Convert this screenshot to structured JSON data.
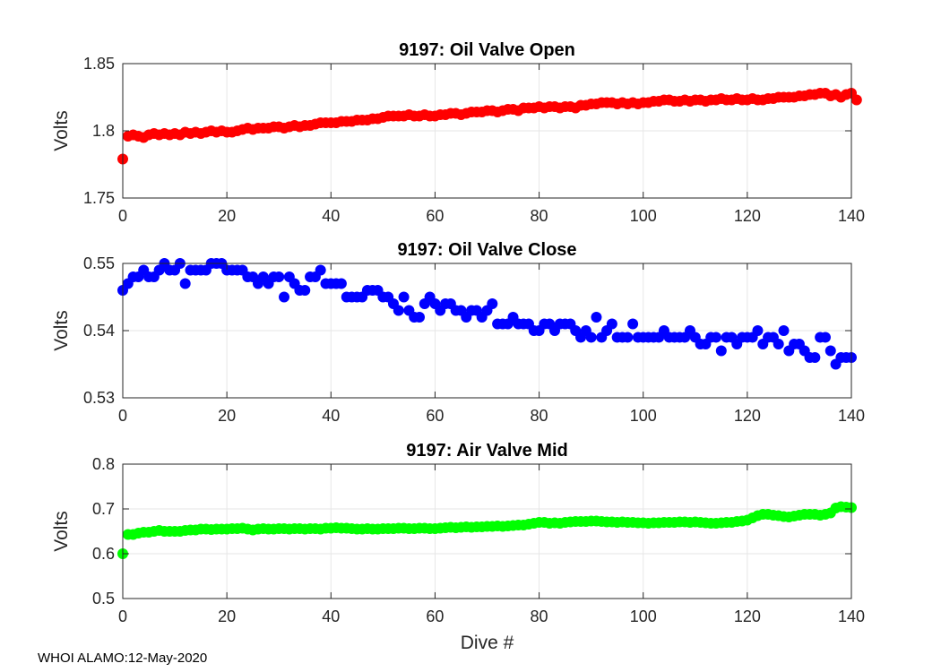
{
  "footer": "WHOI ALAMO:12-May-2020",
  "colors": {
    "panel1": "#ff0000",
    "panel2": "#0000ff",
    "panel3": "#00ff00"
  },
  "chart_data": [
    {
      "type": "scatter",
      "title": "9197: Oil Valve Open",
      "xlabel": "",
      "ylabel": "Volts",
      "xlim": [
        0,
        140
      ],
      "ylim": [
        1.75,
        1.85
      ],
      "xticks": [
        "0",
        "20",
        "40",
        "60",
        "80",
        "100",
        "120",
        "140"
      ],
      "yticks": [
        "1.75",
        "1.8",
        "1.85"
      ],
      "grid": true,
      "y": [
        1.779,
        1.796,
        1.797,
        1.796,
        1.795,
        1.797,
        1.798,
        1.797,
        1.798,
        1.797,
        1.798,
        1.797,
        1.799,
        1.798,
        1.799,
        1.798,
        1.799,
        1.8,
        1.799,
        1.8,
        1.799,
        1.799,
        1.8,
        1.801,
        1.802,
        1.801,
        1.802,
        1.802,
        1.802,
        1.803,
        1.803,
        1.802,
        1.803,
        1.804,
        1.803,
        1.804,
        1.804,
        1.805,
        1.806,
        1.806,
        1.806,
        1.806,
        1.807,
        1.807,
        1.807,
        1.808,
        1.808,
        1.808,
        1.809,
        1.809,
        1.81,
        1.811,
        1.811,
        1.811,
        1.811,
        1.812,
        1.811,
        1.811,
        1.812,
        1.811,
        1.811,
        1.812,
        1.812,
        1.813,
        1.813,
        1.812,
        1.813,
        1.814,
        1.814,
        1.814,
        1.815,
        1.815,
        1.814,
        1.815,
        1.816,
        1.816,
        1.815,
        1.817,
        1.817,
        1.817,
        1.818,
        1.817,
        1.818,
        1.818,
        1.817,
        1.818,
        1.818,
        1.817,
        1.819,
        1.819,
        1.82,
        1.82,
        1.821,
        1.821,
        1.821,
        1.82,
        1.821,
        1.82,
        1.821,
        1.82,
        1.821,
        1.821,
        1.822,
        1.822,
        1.823,
        1.823,
        1.822,
        1.822,
        1.823,
        1.822,
        1.823,
        1.823,
        1.822,
        1.823,
        1.823,
        1.824,
        1.823,
        1.823,
        1.824,
        1.823,
        1.823,
        1.824,
        1.823,
        1.823,
        1.824,
        1.824,
        1.825,
        1.825,
        1.825,
        1.825,
        1.826,
        1.826,
        1.827,
        1.827,
        1.828,
        1.828,
        1.826,
        1.827,
        1.825,
        1.827,
        1.828,
        1.823
      ]
    },
    {
      "type": "scatter",
      "title": "9197: Oil Valve Close",
      "xlabel": "",
      "ylabel": "Volts",
      "xlim": [
        0,
        140
      ],
      "ylim": [
        0.53,
        0.55
      ],
      "xticks": [
        "0",
        "20",
        "40",
        "60",
        "80",
        "100",
        "120",
        "140"
      ],
      "yticks": [
        "0.53",
        "0.54",
        "0.55"
      ],
      "grid": true,
      "y": [
        0.546,
        0.547,
        0.548,
        0.548,
        0.549,
        0.548,
        0.548,
        0.549,
        0.55,
        0.549,
        0.549,
        0.55,
        0.547,
        0.549,
        0.549,
        0.549,
        0.549,
        0.55,
        0.55,
        0.55,
        0.549,
        0.549,
        0.549,
        0.549,
        0.548,
        0.548,
        0.547,
        0.548,
        0.547,
        0.548,
        0.548,
        0.545,
        0.548,
        0.547,
        0.546,
        0.546,
        0.548,
        0.548,
        0.549,
        0.547,
        0.547,
        0.547,
        0.547,
        0.545,
        0.545,
        0.545,
        0.545,
        0.546,
        0.546,
        0.546,
        0.545,
        0.545,
        0.544,
        0.543,
        0.545,
        0.543,
        0.542,
        0.542,
        0.544,
        0.545,
        0.544,
        0.543,
        0.544,
        0.544,
        0.543,
        0.543,
        0.542,
        0.543,
        0.543,
        0.542,
        0.543,
        0.544,
        0.541,
        0.541,
        0.541,
        0.542,
        0.541,
        0.541,
        0.541,
        0.54,
        0.54,
        0.541,
        0.541,
        0.54,
        0.541,
        0.541,
        0.541,
        0.54,
        0.539,
        0.54,
        0.539,
        0.542,
        0.539,
        0.54,
        0.541,
        0.539,
        0.539,
        0.539,
        0.541,
        0.539,
        0.539,
        0.539,
        0.539,
        0.539,
        0.54,
        0.539,
        0.539,
        0.539,
        0.539,
        0.54,
        0.539,
        0.538,
        0.538,
        0.539,
        0.539,
        0.537,
        0.539,
        0.539,
        0.538,
        0.539,
        0.539,
        0.539,
        0.54,
        0.538,
        0.539,
        0.539,
        0.538,
        0.54,
        0.537,
        0.538,
        0.538,
        0.537,
        0.536,
        0.536,
        0.539,
        0.539,
        0.537,
        0.535,
        0.536,
        0.536,
        0.536
      ]
    },
    {
      "type": "scatter",
      "title": "9197: Air Valve Mid",
      "xlabel": "Dive #",
      "ylabel": "Volts",
      "xlim": [
        0,
        140
      ],
      "ylim": [
        0.5,
        0.8
      ],
      "xticks": [
        "0",
        "20",
        "40",
        "60",
        "80",
        "100",
        "120",
        "140"
      ],
      "yticks": [
        "0.5",
        "0.6",
        "0.7",
        "0.8"
      ],
      "grid": true,
      "y": [
        0.6,
        0.643,
        0.643,
        0.646,
        0.648,
        0.648,
        0.65,
        0.652,
        0.65,
        0.65,
        0.65,
        0.65,
        0.652,
        0.653,
        0.653,
        0.655,
        0.655,
        0.654,
        0.655,
        0.655,
        0.655,
        0.656,
        0.656,
        0.657,
        0.655,
        0.653,
        0.655,
        0.656,
        0.655,
        0.655,
        0.656,
        0.656,
        0.655,
        0.656,
        0.656,
        0.655,
        0.656,
        0.656,
        0.655,
        0.657,
        0.657,
        0.658,
        0.657,
        0.657,
        0.656,
        0.655,
        0.655,
        0.656,
        0.655,
        0.655,
        0.656,
        0.656,
        0.656,
        0.657,
        0.657,
        0.656,
        0.656,
        0.657,
        0.657,
        0.656,
        0.656,
        0.657,
        0.658,
        0.659,
        0.658,
        0.659,
        0.66,
        0.659,
        0.66,
        0.66,
        0.661,
        0.661,
        0.662,
        0.661,
        0.662,
        0.663,
        0.664,
        0.664,
        0.666,
        0.668,
        0.67,
        0.67,
        0.668,
        0.669,
        0.668,
        0.67,
        0.671,
        0.672,
        0.672,
        0.672,
        0.673,
        0.673,
        0.672,
        0.671,
        0.671,
        0.67,
        0.671,
        0.67,
        0.67,
        0.669,
        0.669,
        0.668,
        0.669,
        0.669,
        0.67,
        0.67,
        0.67,
        0.671,
        0.671,
        0.67,
        0.671,
        0.67,
        0.669,
        0.668,
        0.668,
        0.669,
        0.67,
        0.67,
        0.672,
        0.673,
        0.675,
        0.68,
        0.685,
        0.688,
        0.688,
        0.686,
        0.685,
        0.683,
        0.682,
        0.684,
        0.686,
        0.688,
        0.688,
        0.688,
        0.686,
        0.688,
        0.691,
        0.702,
        0.705,
        0.704,
        0.703
      ]
    }
  ]
}
